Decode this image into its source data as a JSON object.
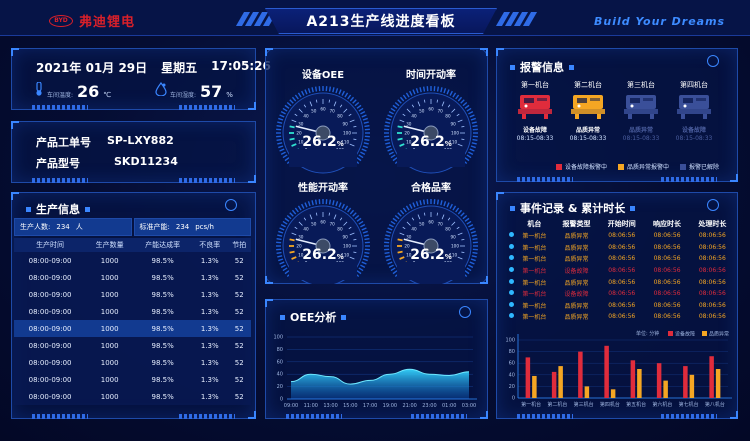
{
  "header": {
    "logo_mark": "BYD",
    "logo_text": "弗迪锂电",
    "title": "A213生产线进度看板",
    "slogan": "Build Your Dreams"
  },
  "datetime": {
    "date": "2021年 01月 29日",
    "weekday": "星期五",
    "time": "17:05:26"
  },
  "environment": {
    "temp_label": "车间温度:",
    "temp_value": "26",
    "temp_unit": "℃",
    "humidity_label": "车间湿度:",
    "humidity_value": "57",
    "humidity_unit": "%"
  },
  "work_order": {
    "order_label": "产品工单号",
    "order_value": "SP-LXY882",
    "model_label": "产品型号",
    "model_value": "SKD11234"
  },
  "production": {
    "title": "生产信息",
    "headcount_label": "生产人数:",
    "headcount_value": "234",
    "headcount_unit": "人",
    "capacity_label": "标准产能:",
    "capacity_value": "234",
    "capacity_unit": "pcs/h",
    "columns": [
      "生产时间",
      "生产数量",
      "产能达成率",
      "不良率",
      "节拍"
    ],
    "rows": [
      [
        "08:00-09:00",
        "1000",
        "98.5%",
        "1.3%",
        "52"
      ],
      [
        "08:00-09:00",
        "1000",
        "98.5%",
        "1.3%",
        "52"
      ],
      [
        "08:00-09:00",
        "1000",
        "98.5%",
        "1.3%",
        "52"
      ],
      [
        "08:00-09:00",
        "1000",
        "98.5%",
        "1.3%",
        "52"
      ],
      [
        "08:00-09:00",
        "1000",
        "98.5%",
        "1.3%",
        "52"
      ],
      [
        "08:00-09:00",
        "1000",
        "98.5%",
        "1.3%",
        "52"
      ],
      [
        "08:00-09:00",
        "1000",
        "98.5%",
        "1.3%",
        "52"
      ],
      [
        "08:00-09:00",
        "1000",
        "98.5%",
        "1.3%",
        "52"
      ],
      [
        "08:00-09:00",
        "1000",
        "98.5%",
        "1.3%",
        "52"
      ]
    ]
  },
  "gauges": {
    "ticks": [
      "0",
      "10",
      "20",
      "30",
      "40",
      "50",
      "60",
      "70",
      "80",
      "90",
      "100",
      "110",
      "120"
    ],
    "items": [
      {
        "label": "设备OEE",
        "value": "26.2",
        "unit": "%",
        "fill": 26.2,
        "accent": "#2fe0d0"
      },
      {
        "label": "时间开动率",
        "value": "26.2",
        "unit": "%",
        "fill": 26.2,
        "accent": "#2fe0d0"
      },
      {
        "label": "性能开动率",
        "value": "26.2",
        "unit": "%",
        "fill": 26.2,
        "accent": "#f5a623"
      },
      {
        "label": "合格品率",
        "value": "26.2",
        "unit": "%",
        "fill": 26.2,
        "accent": "#f5a623"
      }
    ]
  },
  "oee": {
    "title": "OEE分析",
    "x_labels": [
      "09:00",
      "11:00",
      "13:00",
      "15:00",
      "17:00",
      "19:00",
      "21:00",
      "23:00",
      "01:00",
      "03:00"
    ],
    "y_labels": [
      "0",
      "20",
      "40",
      "60",
      "80",
      "100"
    ]
  },
  "alarm": {
    "title": "报警信息",
    "machines": [
      {
        "name": "第一机台",
        "status": "设备故障",
        "time": "08:15-08:33",
        "color": "#e02c3c",
        "active": true
      },
      {
        "name": "第二机台",
        "status": "品质异常",
        "time": "08:15-08:33",
        "color": "#f5a623",
        "active": true
      },
      {
        "name": "第三机台",
        "status": "品质异常",
        "time": "08:15-08:33",
        "color": "#3a4f99",
        "active": false
      },
      {
        "name": "第四机台",
        "status": "设备故障",
        "time": "08:15-08:33",
        "color": "#3a4f99",
        "active": false
      }
    ],
    "legend": [
      {
        "label": "设备故障报警中",
        "color": "#e02c3c"
      },
      {
        "label": "品质异常报警中",
        "color": "#f5a623"
      },
      {
        "label": "报警已解除",
        "color": "#3a4f99"
      }
    ]
  },
  "events": {
    "title": "事件记录 & 累计时长",
    "columns": [
      "机台",
      "报警类型",
      "开始时间",
      "响应时长",
      "处理时长"
    ],
    "rows": [
      [
        "第一机台",
        "品质异常",
        "08:06:56",
        "08:06:56",
        "08:06:56",
        "#f5a623"
      ],
      [
        "第一机台",
        "品质异常",
        "08:06:56",
        "08:06:56",
        "08:06:56",
        "#f5a623"
      ],
      [
        "第一机台",
        "品质异常",
        "08:06:56",
        "08:06:56",
        "08:06:56",
        "#f5a623"
      ],
      [
        "第一机台",
        "设备故障",
        "08:06:56",
        "08:06:56",
        "08:06:56",
        "#e02c3c"
      ],
      [
        "第一机台",
        "品质异常",
        "08:06:56",
        "08:06:56",
        "08:06:56",
        "#f5a623"
      ],
      [
        "第一机台",
        "设备故障",
        "08:06:56",
        "08:06:56",
        "08:06:56",
        "#e02c3c"
      ],
      [
        "第一机台",
        "品质异常",
        "08:06:56",
        "08:06:56",
        "08:06:56",
        "#f5a623"
      ],
      [
        "第一机台",
        "品质异常",
        "08:06:56",
        "08:06:56",
        "08:06:56",
        "#f5a623"
      ]
    ]
  },
  "chart_data": [
    {
      "type": "area",
      "title": "OEE分析",
      "x": [
        "09:00",
        "11:00",
        "13:00",
        "15:00",
        "17:00",
        "19:00",
        "21:00",
        "23:00",
        "01:00",
        "03:00"
      ],
      "values": [
        28,
        40,
        36,
        24,
        30,
        40,
        48,
        40,
        38,
        44
      ],
      "ylim": [
        0,
        100
      ]
    },
    {
      "type": "bar",
      "unit_label": "单位: 分钟",
      "categories": [
        "第一机台",
        "第二机台",
        "第三机台",
        "第四机台",
        "第五机台",
        "第六机台",
        "第七机台",
        "第八机台"
      ],
      "series": [
        {
          "name": "设备故障",
          "color": "#e02c3c",
          "values": [
            70,
            45,
            80,
            90,
            65,
            60,
            55,
            72
          ]
        },
        {
          "name": "品质异常",
          "color": "#f5a623",
          "values": [
            38,
            55,
            20,
            15,
            50,
            30,
            40,
            50
          ]
        }
      ],
      "y_labels": [
        "0",
        "20",
        "40",
        "60",
        "80",
        "100"
      ],
      "ylim": [
        0,
        100
      ]
    }
  ],
  "colors": {
    "accent_blue": "#3a86ff",
    "panel_border": "#1e4aa8",
    "brand_red": "#d9202a"
  }
}
